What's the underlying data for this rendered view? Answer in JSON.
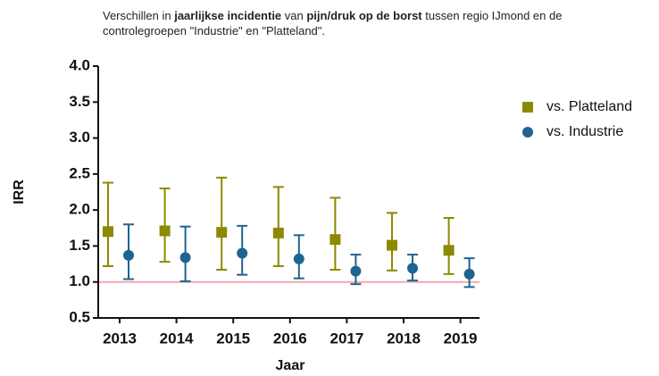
{
  "chart_data": {
    "type": "errorbar",
    "title": [
      {
        "text": "Verschillen in ",
        "bold": false
      },
      {
        "text": "jaarlijkse incidentie",
        "bold": true
      },
      {
        "text": " van ",
        "bold": false
      },
      {
        "text": "pijn/druk op de borst",
        "bold": true
      },
      {
        "text": " tussen regio IJmond en de controlegroepen \"Industrie\" en \"Platteland\".",
        "bold": false
      }
    ],
    "x_label": "Jaar",
    "y_label": "IRR",
    "categories": [
      "2013",
      "2014",
      "2015",
      "2016",
      "2017",
      "2018",
      "2019"
    ],
    "series": [
      {
        "name": "vs. Platteland",
        "color": "#8c8a00",
        "marker": "square",
        "values": [
          1.7,
          1.71,
          1.69,
          1.68,
          1.59,
          1.51,
          1.44
        ],
        "upper": [
          2.38,
          2.3,
          2.45,
          2.32,
          2.17,
          1.96,
          1.89
        ],
        "lower": [
          1.22,
          1.28,
          1.17,
          1.22,
          1.17,
          1.16,
          1.11
        ]
      },
      {
        "name": "vs. Industrie",
        "color": "#1f6391",
        "marker": "circle",
        "values": [
          1.37,
          1.34,
          1.4,
          1.32,
          1.15,
          1.19,
          1.11
        ],
        "upper": [
          1.8,
          1.77,
          1.78,
          1.65,
          1.38,
          1.38,
          1.33
        ],
        "lower": [
          1.04,
          1.01,
          1.1,
          1.05,
          0.97,
          1.02,
          0.93
        ]
      }
    ],
    "ylim": [
      0.5,
      4.0
    ],
    "yticks": [
      0.5,
      {
        "value": 1.0,
        "label": "1.0"
      },
      1.5,
      {
        "value": 2.0,
        "label": "2.0"
      },
      2.5,
      {
        "value": 3.0,
        "label": "3.0"
      },
      3.5,
      {
        "value": 4.0,
        "label": "4.0"
      }
    ],
    "reference_line": {
      "value": 1.0,
      "color": "#f4a6ae"
    },
    "legend": "right"
  }
}
